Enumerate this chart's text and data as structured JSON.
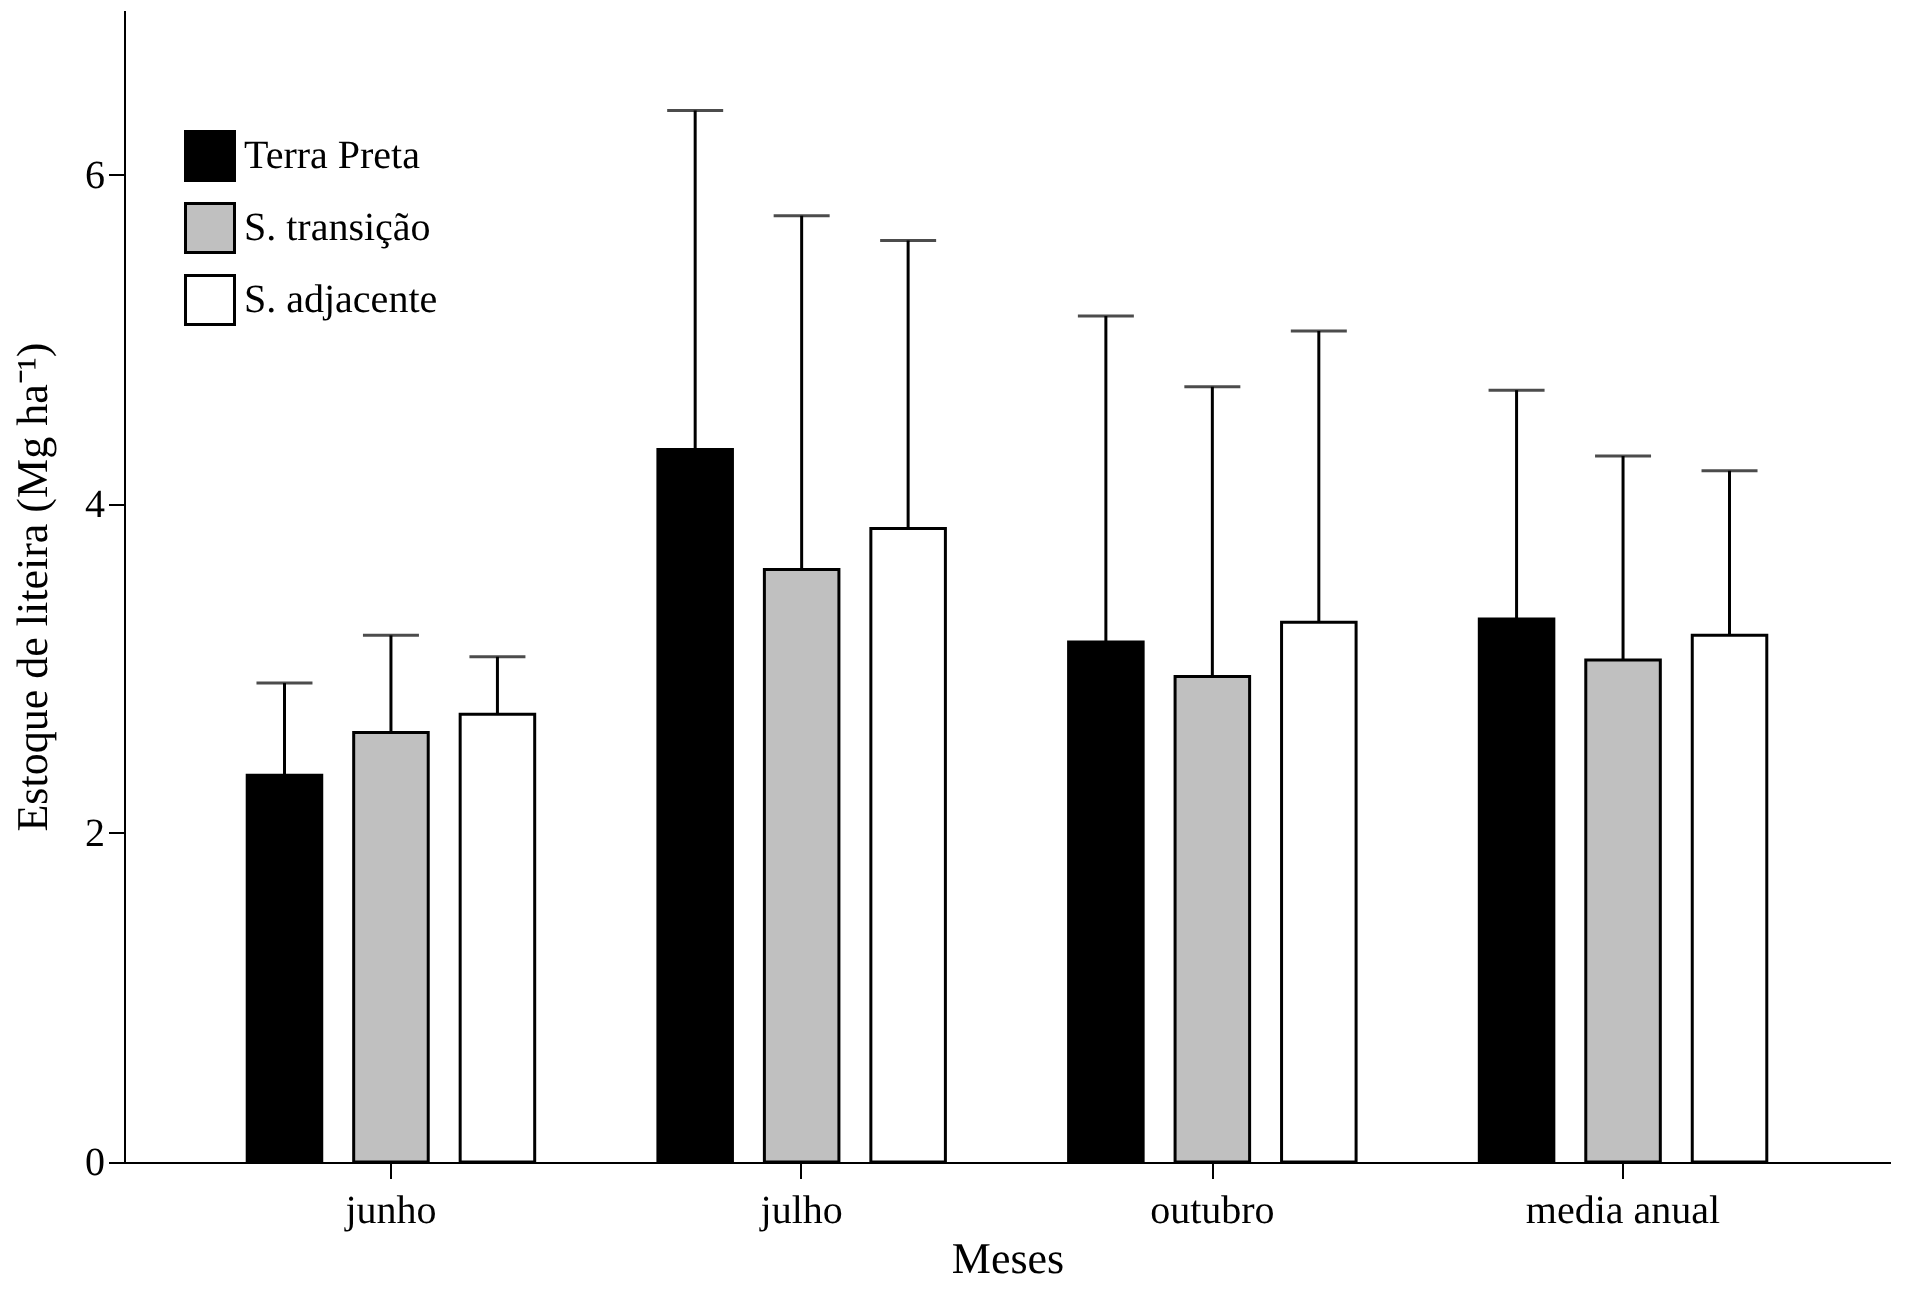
{
  "chart_data": {
    "type": "bar",
    "xlabel": "Meses",
    "ylabel": "Estoque de liteira (Mg ha⁻¹)",
    "categories": [
      "junho",
      "julho",
      "outubro",
      "media anual"
    ],
    "series": [
      {
        "name": "Terra Preta",
        "color": "#000000",
        "values": [
          2.35,
          4.33,
          3.16,
          3.3
        ],
        "errors": [
          [
            2.35,
            2.91
          ],
          [
            4.33,
            6.39
          ],
          [
            3.16,
            5.14
          ],
          [
            3.3,
            4.69
          ]
        ]
      },
      {
        "name": "S. transição",
        "color": "#c0c0c0",
        "values": [
          2.61,
          3.6,
          2.95,
          3.05
        ],
        "errors": [
          [
            2.61,
            3.2
          ],
          [
            3.6,
            5.75
          ],
          [
            2.95,
            4.71
          ],
          [
            3.05,
            4.29
          ]
        ]
      },
      {
        "name": "S. adjacente",
        "color": "#ffffff",
        "values": [
          2.72,
          3.85,
          3.28,
          3.2
        ],
        "errors": [
          [
            2.72,
            3.07
          ],
          [
            3.85,
            5.6
          ],
          [
            3.28,
            5.05
          ],
          [
            3.2,
            4.2
          ]
        ]
      }
    ],
    "ylim": [
      0,
      7
    ],
    "yticks": [
      0,
      2,
      4,
      6
    ],
    "grid": false,
    "legend": "top left"
  }
}
